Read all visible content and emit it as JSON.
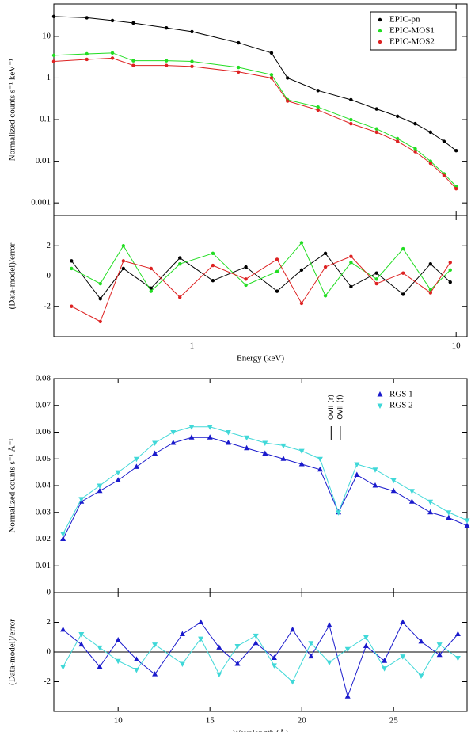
{
  "chart_data": [
    {
      "type": "scatter",
      "xlog": true,
      "ylog": true,
      "ylabel": "Normalized counts s⁻¹ keV⁻¹",
      "xlim": [
        0.3,
        11
      ],
      "xticks": [
        1,
        10
      ],
      "ylim": [
        0.0005,
        60
      ],
      "yticks": [
        0.001,
        0.01,
        0.1,
        1,
        10
      ],
      "legend": "top-right",
      "x": [
        0.3,
        0.4,
        0.5,
        0.6,
        0.8,
        1,
        1.5,
        2,
        2.3,
        3,
        4,
        5,
        6,
        7,
        8,
        9,
        10
      ],
      "series": [
        {
          "name": "EPIC-pn",
          "color": "#000000",
          "marker": "circle",
          "values": [
            30,
            28,
            24,
            21,
            16,
            13,
            7,
            4,
            1.0,
            0.5,
            0.3,
            0.18,
            0.12,
            0.08,
            0.05,
            0.03,
            0.018
          ]
        },
        {
          "name": "EPIC-MOS1",
          "color": "#22dd22",
          "marker": "circle",
          "values": [
            3.5,
            3.8,
            4.0,
            2.6,
            2.6,
            2.5,
            1.8,
            1.2,
            0.3,
            0.2,
            0.1,
            0.06,
            0.035,
            0.02,
            0.01,
            0.005,
            0.0025
          ]
        },
        {
          "name": "EPIC-MOS2",
          "color": "#dd2222",
          "marker": "circle",
          "values": [
            2.5,
            2.8,
            3.0,
            2.0,
            2.0,
            1.9,
            1.4,
            1.0,
            0.28,
            0.17,
            0.08,
            0.05,
            0.03,
            0.017,
            0.009,
            0.0045,
            0.0022
          ]
        }
      ]
    },
    {
      "type": "scatter",
      "xlog": true,
      "ylabel": "(Data-model)/error",
      "xlabel": "Energy (keV)",
      "xlim": [
        0.3,
        11
      ],
      "xticks": [
        1,
        10
      ],
      "ylim": [
        -4,
        4
      ],
      "yticks": [
        -2,
        0,
        2
      ],
      "x": [
        0.35,
        0.45,
        0.55,
        0.7,
        0.9,
        1.2,
        1.6,
        2.1,
        2.6,
        3.2,
        4,
        5,
        6.3,
        8,
        9.5
      ],
      "series": [
        {
          "color": "#000000",
          "marker": "circle",
          "values": [
            1,
            -1.5,
            0.5,
            -0.8,
            1.2,
            -0.3,
            0.6,
            -1,
            0.4,
            1.5,
            -0.7,
            0.2,
            -1.2,
            0.8,
            -0.4
          ]
        },
        {
          "color": "#22dd22",
          "marker": "circle",
          "values": [
            0.5,
            -0.5,
            2,
            -1,
            0.8,
            1.5,
            -0.6,
            0.3,
            2.2,
            -1.3,
            0.9,
            -0.2,
            1.8,
            -0.9,
            0.4
          ]
        },
        {
          "color": "#dd2222",
          "marker": "circle",
          "values": [
            -2,
            -3,
            1,
            0.5,
            -1.4,
            0.7,
            -0.2,
            1.1,
            -1.8,
            0.6,
            1.3,
            -0.5,
            0.2,
            -1.1,
            0.9
          ]
        }
      ]
    },
    {
      "type": "scatter",
      "ylabel": "Normalized counts s⁻¹ Å⁻¹",
      "xlim": [
        6.5,
        29
      ],
      "xticks": [
        10,
        15,
        20,
        25
      ],
      "ylim": [
        0,
        0.08
      ],
      "yticks": [
        0,
        0.01,
        0.02,
        0.03,
        0.04,
        0.05,
        0.06,
        0.07,
        0.08
      ],
      "legend": "top-right",
      "annotations": [
        {
          "text": "OVII (r)",
          "x": 21.6
        },
        {
          "text": "OVII (f)",
          "x": 22.1
        }
      ],
      "x": [
        7,
        8,
        9,
        10,
        11,
        12,
        13,
        14,
        15,
        16,
        17,
        18,
        19,
        20,
        21,
        22,
        23,
        24,
        25,
        26,
        27,
        28,
        29
      ],
      "series": [
        {
          "name": "RGS 1",
          "color": "#1a1acc",
          "marker": "triangle-up",
          "values": [
            0.02,
            0.034,
            0.038,
            0.042,
            0.047,
            0.052,
            0.056,
            0.058,
            0.058,
            0.056,
            0.054,
            0.052,
            0.05,
            0.048,
            0.046,
            0.03,
            0.044,
            0.04,
            0.038,
            0.034,
            0.03,
            0.028,
            0.025
          ]
        },
        {
          "name": "RGS 2",
          "color": "#40d8d8",
          "marker": "triangle-down",
          "values": [
            0.022,
            0.035,
            0.04,
            0.045,
            0.05,
            0.056,
            0.06,
            0.062,
            0.062,
            0.06,
            0.058,
            0.056,
            0.055,
            0.053,
            0.05,
            0.03,
            0.048,
            0.046,
            0.042,
            0.038,
            0.034,
            0.03,
            0.027
          ]
        }
      ]
    },
    {
      "type": "scatter",
      "ylabel": "(Data-model)/error",
      "xlabel": "Wavelength (Å)",
      "xlim": [
        6.5,
        29
      ],
      "xticks": [
        10,
        15,
        20,
        25
      ],
      "ylim": [
        -4,
        4
      ],
      "yticks": [
        -2,
        0,
        2
      ],
      "x": [
        7,
        8,
        9,
        10,
        11,
        12,
        13.5,
        14.5,
        15.5,
        16.5,
        17.5,
        18.5,
        19.5,
        20.5,
        21.5,
        22.5,
        23.5,
        24.5,
        25.5,
        26.5,
        27.5,
        28.5
      ],
      "series": [
        {
          "color": "#1a1acc",
          "marker": "triangle-up",
          "values": [
            1.5,
            0.5,
            -1,
            0.8,
            -0.5,
            -1.5,
            1.2,
            2,
            0.3,
            -0.8,
            0.6,
            -0.4,
            1.5,
            -0.3,
            1.8,
            -3,
            0.4,
            -0.6,
            2,
            0.7,
            -0.2,
            1.2
          ]
        },
        {
          "color": "#40d8d8",
          "marker": "triangle-down",
          "values": [
            -1,
            1.2,
            0.3,
            -0.6,
            -1.2,
            0.5,
            -0.8,
            0.9,
            -1.5,
            0.4,
            1.1,
            -0.9,
            -2,
            0.6,
            -0.7,
            0.2,
            1,
            -1.1,
            -0.3,
            -1.6,
            0.5,
            -0.4
          ]
        }
      ]
    }
  ]
}
